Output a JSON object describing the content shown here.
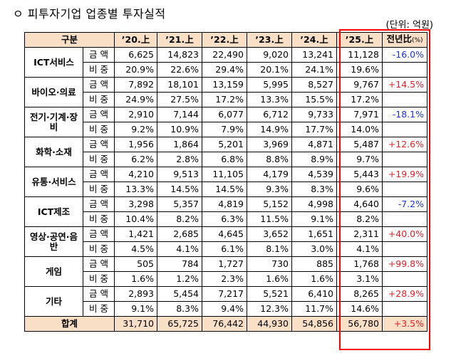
{
  "title": "ㅇ 피투자기업 업종별 투자실적",
  "unit": "(단위: 억원)",
  "header": {
    "category": "구분",
    "years": [
      "’20.上",
      "’21.上",
      "’22.上",
      "’23.上",
      "’24.上",
      "’25.上"
    ],
    "change_main": "전년比",
    "change_unit": "(%)"
  },
  "metric_labels": {
    "amount": "금 액",
    "share": "비 중"
  },
  "rows": [
    {
      "industry": "ICT서비스",
      "amount": [
        "6,625",
        "14,823",
        "22,490",
        "9,020",
        "13,241",
        "11,128"
      ],
      "share": [
        "20.9%",
        "22.6%",
        "29.4%",
        "20.1%",
        "24.1%",
        "19.6%"
      ],
      "change": "-16.0%"
    },
    {
      "industry": "바이오·의료",
      "amount": [
        "7,892",
        "18,101",
        "13,159",
        "5,995",
        "8,527",
        "9,767"
      ],
      "share": [
        "24.9%",
        "27.5%",
        "17.2%",
        "13.3%",
        "15.5%",
        "17.2%"
      ],
      "change": "+14.5%"
    },
    {
      "industry": "전기·기계·장비",
      "amount": [
        "2,910",
        "7,144",
        "6,077",
        "6,712",
        "9,733",
        "7,971"
      ],
      "share": [
        "9.2%",
        "10.9%",
        "7.9%",
        "14.9%",
        "17.7%",
        "14.0%"
      ],
      "change": "-18.1%"
    },
    {
      "industry": "화학·소재",
      "amount": [
        "1,956",
        "1,864",
        "5,201",
        "3,969",
        "4,871",
        "5,487"
      ],
      "share": [
        "6.2%",
        "2.8%",
        "6.8%",
        "8.8%",
        "8.9%",
        "9.7%"
      ],
      "change": "+12.6%"
    },
    {
      "industry": "유통·서비스",
      "amount": [
        "4,210",
        "9,513",
        "11,105",
        "4,179",
        "4,539",
        "5,443"
      ],
      "share": [
        "13.3%",
        "14.5%",
        "14.5%",
        "9.3%",
        "8.3%",
        "9.6%"
      ],
      "change": "+19.9%"
    },
    {
      "industry": "ICT제조",
      "amount": [
        "3,298",
        "5,357",
        "4,819",
        "5,152",
        "4,998",
        "4,640"
      ],
      "share": [
        "10.4%",
        "8.2%",
        "6.3%",
        "11.5%",
        "9.1%",
        "8.2%"
      ],
      "change": "-7.2%"
    },
    {
      "industry": "영상·공연·음반",
      "amount": [
        "1,421",
        "2,685",
        "4,645",
        "3,652",
        "1,651",
        "2,311"
      ],
      "share": [
        "4.5%",
        "4.1%",
        "6.1%",
        "8.1%",
        "3.0%",
        "4.1%"
      ],
      "change": "+40.0%"
    },
    {
      "industry": "게임",
      "amount": [
        "505",
        "784",
        "1,727",
        "730",
        "885",
        "1,768"
      ],
      "share": [
        "1.6%",
        "1.2%",
        "2.3%",
        "1.6%",
        "1.6%",
        "3.1%"
      ],
      "change": "+99.8%"
    },
    {
      "industry": "기타",
      "amount": [
        "2,893",
        "5,454",
        "7,217",
        "5,521",
        "6,410",
        "8,265"
      ],
      "share": [
        "9.1%",
        "8.3%",
        "9.4%",
        "12.3%",
        "11.7%",
        "14.6%"
      ],
      "change": "+28.9%"
    }
  ],
  "total": {
    "label": "합계",
    "values": [
      "31,710",
      "65,725",
      "76,442",
      "44,930",
      "54,856",
      "56,780"
    ],
    "change": "+3.5%"
  },
  "colors": {
    "header_bg": "#f9dfc6",
    "highlight_border": "#ff0000",
    "negative": "#1a34d6",
    "positive": "#e0202a"
  }
}
